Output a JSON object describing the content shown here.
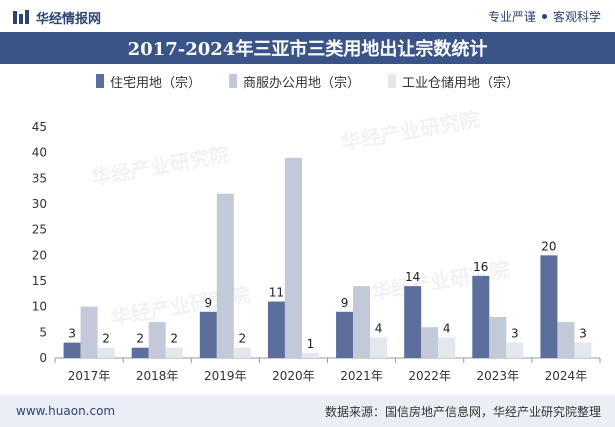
{
  "header": {
    "logo_text": "华经情报网",
    "right_left": "专业严谨",
    "right_right": "客观科学"
  },
  "colors": {
    "series1": "#5c6f9c",
    "series2": "#c3c9d9",
    "series3": "#e4e7ee",
    "title_band": "#3a5488"
  },
  "chart_data": {
    "type": "bar",
    "title": "2017-2024年三亚市三类用地出让宗数统计",
    "categories": [
      "2017年",
      "2018年",
      "2019年",
      "2020年",
      "2021年",
      "2022年",
      "2023年",
      "2024年"
    ],
    "series": [
      {
        "name": "住宅用地（宗）",
        "values": [
          3,
          2,
          9,
          11,
          9,
          14,
          16,
          20
        ]
      },
      {
        "name": "商服办公用地（宗）",
        "values": [
          10,
          7,
          32,
          39,
          14,
          6,
          8,
          7
        ]
      },
      {
        "name": "工业仓储用地（宗）",
        "values": [
          2,
          2,
          2,
          1,
          4,
          4,
          3,
          3
        ]
      }
    ],
    "labeled_series": [
      0,
      2
    ],
    "ylim": [
      0,
      45
    ],
    "yticks": [
      0,
      5,
      10,
      15,
      20,
      25,
      30,
      35,
      40,
      45
    ],
    "legend_position": "top-center",
    "grid": false
  },
  "footer": {
    "site": "www.huaon.com",
    "source": "数据来源：国信房地产信息网，华经产业研究院整理"
  }
}
